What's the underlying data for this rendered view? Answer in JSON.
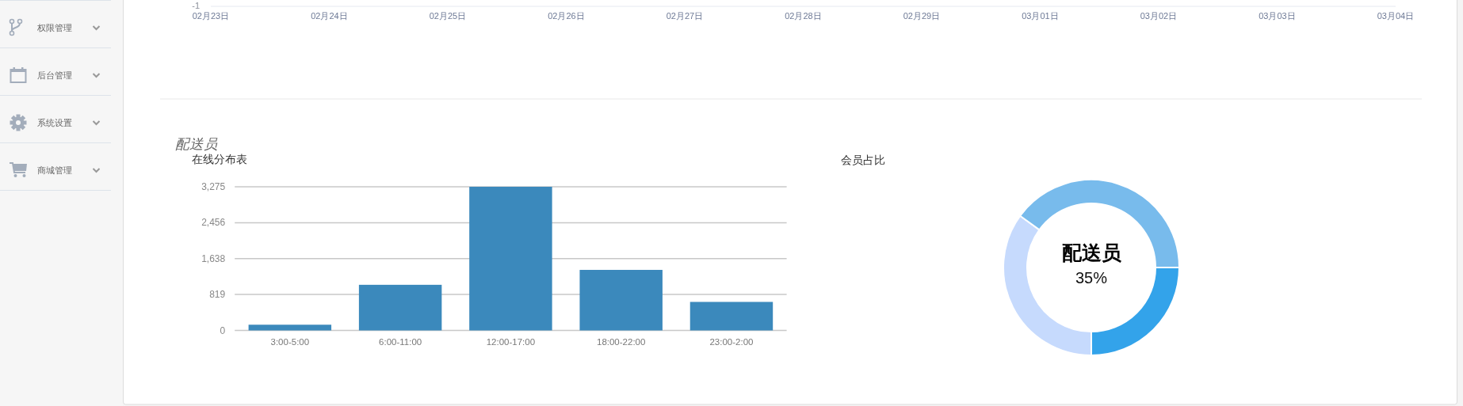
{
  "chart_data": [
    {
      "type": "other",
      "annotations": [
        "权限管理",
        "后台管理",
        "系统设置",
        "商城管理"
      ]
    },
    {
      "type": "other",
      "categories": [
        "02月23日",
        "02月24日",
        "02月25日",
        "02月26日",
        "02月27日",
        "02月28日",
        "02月29日",
        "03月01日",
        "03月02日",
        "03月03日",
        "03月04日"
      ],
      "annotations": [
        "-1"
      ]
    },
    {
      "type": "other",
      "title": "配送员"
    },
    {
      "type": "bar",
      "title": "在线分布表",
      "categories": [
        "3:00-5:00",
        "6:00-11:00",
        "12:00-17:00",
        "18:00-22:00",
        "23:00-2:00"
      ],
      "values": [
        130,
        1040,
        3275,
        1380,
        650
      ],
      "color": "#3b89bc",
      "ylim": [
        0,
        3275
      ],
      "yticks": [
        0,
        819,
        {
          "value": 1638,
          "label": "1,638"
        },
        {
          "value": 2456,
          "label": "2,456"
        },
        {
          "value": 3275,
          "label": "3,275"
        }
      ],
      "grid": "y"
    },
    {
      "type": "donut",
      "title": "会员占比",
      "categories": [
        null,
        "配送员",
        null
      ],
      "values": [
        25,
        35,
        40
      ],
      "colors": [
        "#33a3ea",
        "#c6dafd",
        "#78bbec"
      ],
      "value_labels": [
        null,
        "35%",
        null
      ]
    }
  ]
}
